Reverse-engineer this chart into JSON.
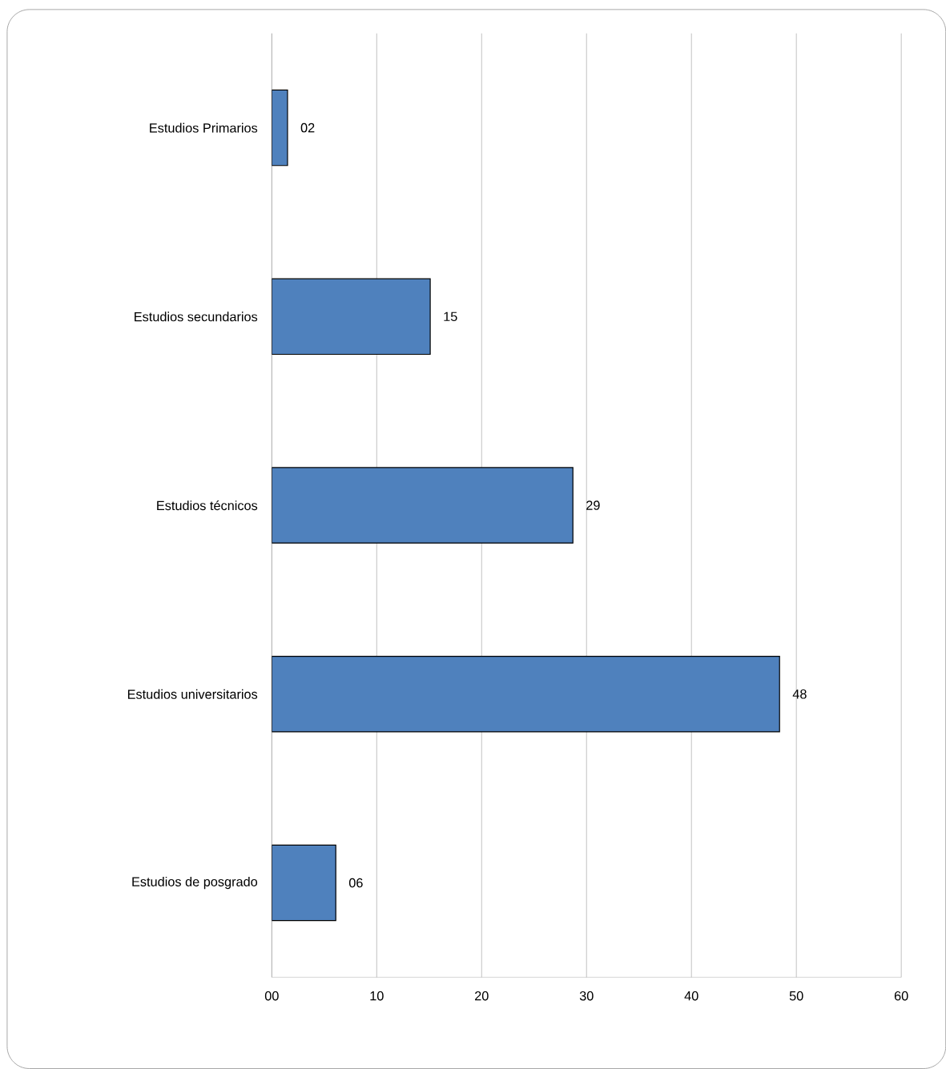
{
  "chart_data": {
    "type": "bar",
    "orientation": "horizontal",
    "categories": [
      "Estudios Primarios",
      "Estudios secundarios",
      "Estudios técnicos",
      "Estudios universitarios",
      "Estudios de posgrado"
    ],
    "values": [
      1.5,
      15.1,
      28.7,
      48.4,
      6.1
    ],
    "value_labels": [
      "02",
      "15",
      "29",
      "48",
      "06"
    ],
    "color": "#4f81bd",
    "xlim": [
      0,
      60
    ],
    "xticks": [
      {
        "value": 0,
        "label": "00"
      },
      10,
      20,
      30,
      40,
      50,
      60
    ],
    "grid": "x"
  }
}
